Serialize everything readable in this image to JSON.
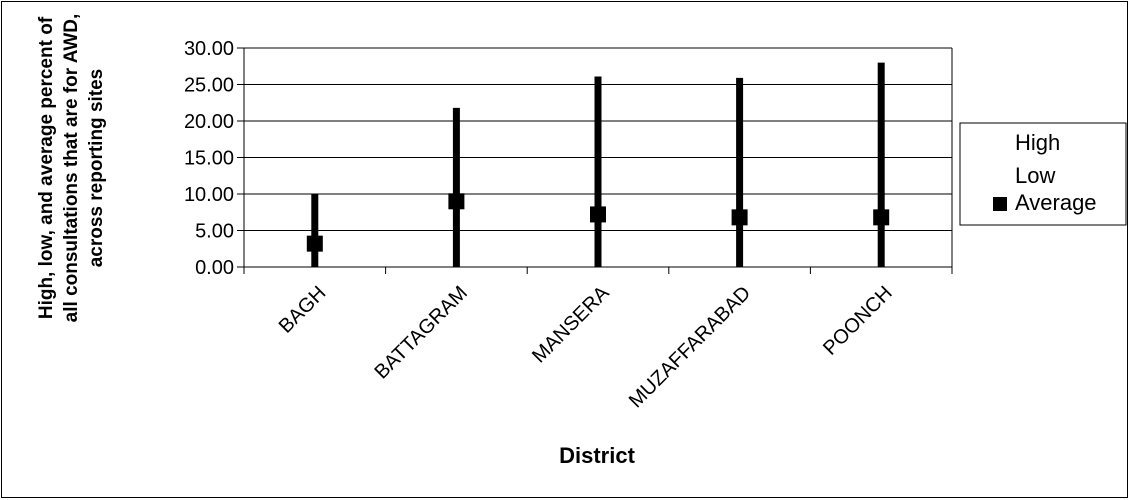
{
  "chart_data": {
    "type": "high-low-average",
    "categories": [
      "BAGH",
      "BATTAGRAM",
      "MANSERA",
      "MUZAFFARABAD",
      "POONCH"
    ],
    "series": [
      {
        "name": "High",
        "values": [
          10.0,
          21.8,
          26.1,
          25.9,
          28.0
        ]
      },
      {
        "name": "Low",
        "values": [
          0.0,
          0.0,
          0.0,
          0.0,
          0.0
        ]
      },
      {
        "name": "Average",
        "values": [
          3.2,
          9.0,
          7.2,
          6.8,
          6.8
        ]
      }
    ],
    "y_ticks": [
      "0.00",
      "5.00",
      "10.00",
      "15.00",
      "20.00",
      "25.00",
      "30.00"
    ],
    "ylim": [
      0,
      30
    ],
    "ylabel_lines": [
      "High, low, and average percent of",
      "all consultations that are for AWD,",
      "across reporting sites"
    ],
    "xlabel": "District",
    "grid": "horizontal",
    "legend_position": "right",
    "colors": {
      "series": "#000000",
      "grid": "#000000",
      "background": "#ffffff"
    }
  }
}
